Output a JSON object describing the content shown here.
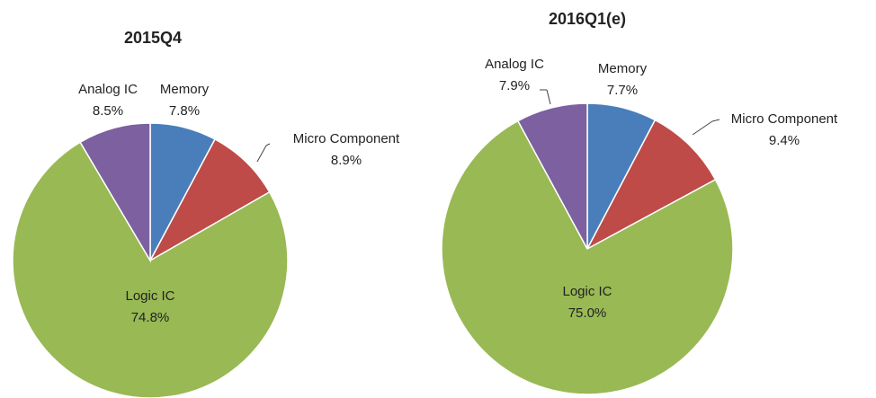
{
  "chart_data": [
    {
      "type": "pie",
      "title": "2015Q4",
      "categories": [
        "Memory",
        "Micro Component",
        "Logic IC",
        "Analog IC"
      ],
      "values": [
        7.8,
        8.9,
        74.8,
        8.5
      ],
      "value_labels": [
        "7.8%",
        "8.9%",
        "74.8%",
        "8.5%"
      ],
      "colors": [
        "#4a7ebb",
        "#be4b48",
        "#98b954",
        "#7d60a0"
      ]
    },
    {
      "type": "pie",
      "title": "2016Q1(e)",
      "categories": [
        "Memory",
        "Micro Component",
        "Logic IC",
        "Analog IC"
      ],
      "values": [
        7.7,
        9.4,
        75.0,
        7.9
      ],
      "value_labels": [
        "7.7%",
        "9.4%",
        "75.0%",
        "7.9%"
      ],
      "colors": [
        "#4a7ebb",
        "#be4b48",
        "#98b954",
        "#7d60a0"
      ]
    }
  ]
}
